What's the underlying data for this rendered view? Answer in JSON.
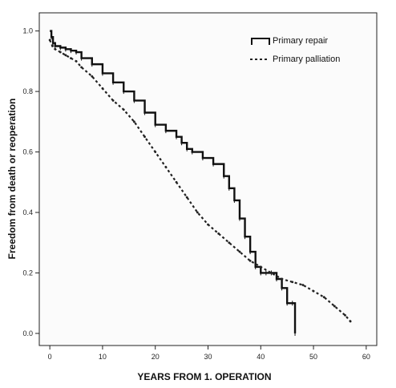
{
  "chart_data": {
    "type": "line",
    "xlabel": "YEARS FROM 1. OPERATION",
    "ylabel": "Freedom from death or reoperation",
    "xlim": [
      -2,
      62
    ],
    "ylim": [
      -0.04,
      1.06
    ],
    "x_ticks": [
      0,
      10,
      20,
      30,
      40,
      50,
      60
    ],
    "x_tick_labels": [
      "0",
      "10",
      "20",
      "30",
      "40",
      "50",
      "60"
    ],
    "y_ticks": [
      0.0,
      0.2,
      0.4,
      0.6,
      0.8,
      1.0
    ],
    "y_tick_labels": [
      "0.0",
      "0.2",
      "0.4",
      "0.6",
      "0.8",
      "1.0"
    ],
    "grid": false,
    "legend_position": "top-right",
    "series": [
      {
        "name": "Primary repair",
        "style": "solid-step",
        "x": [
          0,
          0.3,
          0.6,
          1,
          2,
          3,
          4,
          5,
          6,
          8,
          10,
          12,
          14,
          16,
          18,
          20,
          22,
          24,
          25,
          26,
          27,
          29,
          31,
          33,
          34,
          35,
          36,
          37,
          38,
          39,
          40,
          41,
          42,
          43,
          44,
          45,
          46,
          46.5
        ],
        "y": [
          1.0,
          0.98,
          0.96,
          0.95,
          0.945,
          0.94,
          0.935,
          0.93,
          0.91,
          0.89,
          0.86,
          0.83,
          0.8,
          0.77,
          0.73,
          0.69,
          0.67,
          0.65,
          0.63,
          0.61,
          0.6,
          0.58,
          0.56,
          0.52,
          0.48,
          0.44,
          0.38,
          0.32,
          0.27,
          0.22,
          0.2,
          0.2,
          0.2,
          0.18,
          0.15,
          0.1,
          0.1,
          0.0
        ]
      },
      {
        "name": "Primary palliation",
        "style": "dashed",
        "x": [
          0,
          0.5,
          1,
          2,
          3,
          4,
          5,
          6,
          8,
          10,
          12,
          14,
          16,
          18,
          20,
          22,
          24,
          26,
          28,
          30,
          32,
          34,
          36,
          38,
          40,
          42,
          44,
          46,
          48,
          50,
          52,
          54,
          56,
          57
        ],
        "y": [
          0.97,
          0.95,
          0.94,
          0.93,
          0.92,
          0.91,
          0.9,
          0.88,
          0.85,
          0.81,
          0.77,
          0.74,
          0.7,
          0.65,
          0.6,
          0.55,
          0.5,
          0.45,
          0.4,
          0.36,
          0.33,
          0.3,
          0.27,
          0.24,
          0.22,
          0.2,
          0.18,
          0.17,
          0.16,
          0.14,
          0.12,
          0.09,
          0.06,
          0.04
        ]
      }
    ]
  }
}
